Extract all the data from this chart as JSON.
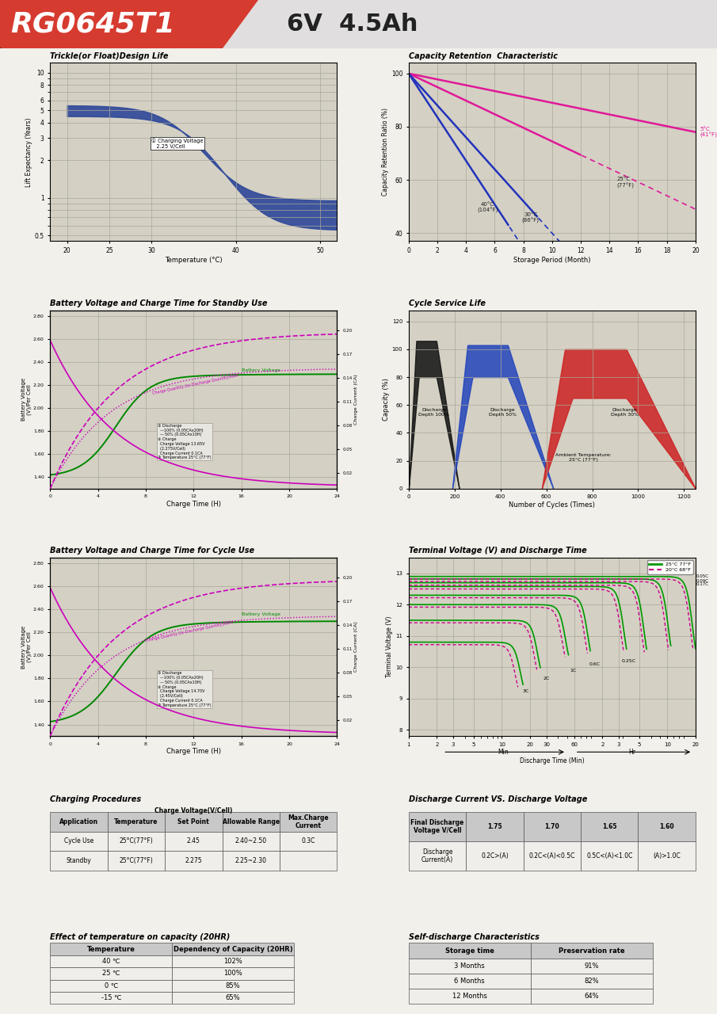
{
  "title_model": "RG0645T1",
  "title_spec": "6V  4.5Ah",
  "header_bg": "#d63b2f",
  "body_bg": "#f2f0eb",
  "plot_bg": "#d4d0c4",
  "grid_color": "#aaa898",
  "section1_title": "Trickle(or Float)Design Life",
  "section2_title": "Capacity Retention  Characteristic",
  "section3_title": "Battery Voltage and Charge Time for Standby Use",
  "section4_title": "Cycle Service Life",
  "section5_title": "Battery Voltage and Charge Time for Cycle Use",
  "section6_title": "Terminal Voltage (V) and Discharge Time",
  "section7_title": "Charging Procedures",
  "section8_title": "Discharge Current VS. Discharge Voltage",
  "section9_title": "Effect of temperature on capacity (20HR)",
  "section10_title": "Self-discharge Characteristics",
  "charging_rows": [
    [
      "Cycle Use",
      "25°C(77°F)",
      "2.45",
      "2.40~2.50",
      "0.3C"
    ],
    [
      "Standby",
      "25°C(77°F)",
      "2.275",
      "2.25~2.30",
      ""
    ]
  ],
  "discharge_v_cols": [
    "Final Discharge\nVoltage V/Cell",
    "1.75",
    "1.70",
    "1.65",
    "1.60"
  ],
  "discharge_v_row": [
    "Discharge\nCurrent(A)",
    "0.2C>(A)",
    "0.2C<(A)<0.5C",
    "0.5C<(A)<1.0C",
    "(A)>1.0C"
  ],
  "temp_cap_rows": [
    [
      "40 ℃",
      "102%"
    ],
    [
      "25 ℃",
      "100%"
    ],
    [
      "0 ℃",
      "85%"
    ],
    [
      "-15 ℃",
      "65%"
    ]
  ],
  "self_disc_rows": [
    [
      "3 Months",
      "91%"
    ],
    [
      "6 Months",
      "82%"
    ],
    [
      "12 Months",
      "64%"
    ]
  ]
}
